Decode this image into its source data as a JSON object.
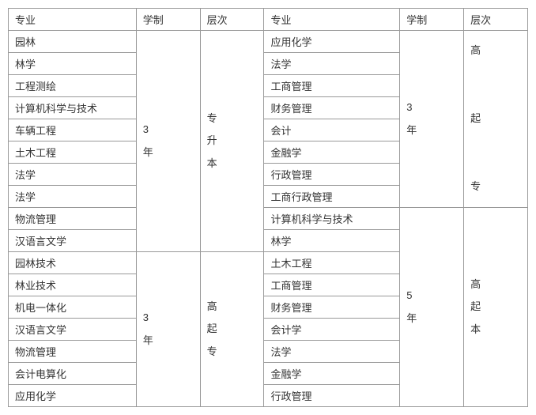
{
  "headers": {
    "major": "专业",
    "duration": "学制",
    "level": "层次"
  },
  "left": {
    "group1": {
      "majors": [
        "园林",
        "林学",
        "工程测绘",
        "计算机科学与技术",
        "车辆工程",
        "土木工程",
        "法学",
        "法学",
        "物流管理",
        "汉语言文学"
      ],
      "duration": "3\n年",
      "level": "专\n升\n本"
    },
    "group2": {
      "majors": [
        "园林技术",
        "林业技术",
        "机电一体化",
        "汉语言文学",
        "物流管理",
        "会计电算化",
        "应用化学"
      ],
      "duration": "3\n年",
      "level": "高\n起\n专"
    }
  },
  "right": {
    "group1": {
      "majors": [
        "应用化学",
        "法学",
        "工商管理",
        "财务管理",
        "会计",
        "金融学",
        "行政管理",
        "工商行政管理"
      ],
      "duration": "3\n年",
      "level": "高\n\n起\n\n专"
    },
    "group2": {
      "majors": [
        "计算机科学与技术",
        "林学",
        "土木工程",
        "工商管理",
        "财务管理",
        "会计学",
        "法学",
        "金融学",
        "行政管理"
      ],
      "duration": "5\n年",
      "level": "高\n起\n本"
    }
  },
  "colors": {
    "border": "#999999",
    "text": "#333333",
    "background": "#ffffff"
  },
  "col_widths": {
    "major": 150,
    "duration": 80,
    "level": 80
  }
}
